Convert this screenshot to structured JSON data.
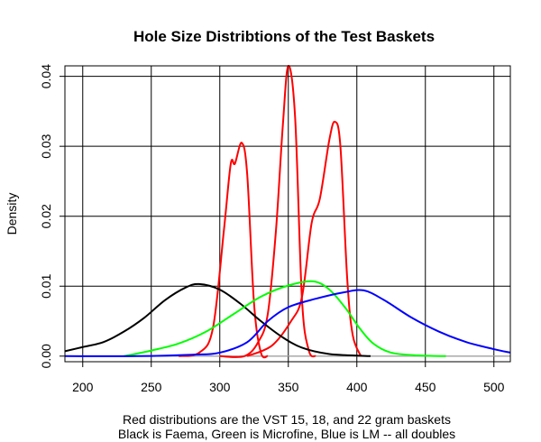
{
  "chart_data": {
    "type": "line",
    "title": "Hole Size Distribtions of the Test Baskets",
    "xlabel": "",
    "ylabel": "Density",
    "xlim": [
      187,
      512
    ],
    "ylim": [
      -0.0008,
      0.0415
    ],
    "x_ticks": [
      200,
      250,
      300,
      350,
      400,
      450,
      500
    ],
    "y_ticks": [
      0.0,
      0.01,
      0.02,
      0.03,
      0.04
    ],
    "y_tick_labels": [
      "0.00",
      "0.01",
      "0.02",
      "0.03",
      "0.04"
    ],
    "grid": true,
    "caption_lines": [
      "Red distributions are the VST 15, 18, and 22 gram baskets",
      "Black is Faema, Green is Microfine, Blue is LM -- all doubles"
    ],
    "series": [
      {
        "color": "#ff0000",
        "points": [
          [
            270,
            0
          ],
          [
            285,
            0.0005
          ],
          [
            295,
            0.004
          ],
          [
            303,
            0.018
          ],
          [
            308,
            0.0275
          ],
          [
            311,
            0.0275
          ],
          [
            316,
            0.0305
          ],
          [
            320,
            0.026
          ],
          [
            325,
            0.0075
          ],
          [
            330,
            0.0005
          ],
          [
            335,
            0
          ]
        ]
      },
      {
        "color": "#ff0000",
        "points": [
          [
            300,
            0
          ],
          [
            318,
            0
          ],
          [
            328,
            0.002
          ],
          [
            335,
            0.006
          ],
          [
            341,
            0.018
          ],
          [
            346,
            0.033
          ],
          [
            350,
            0.0415
          ],
          [
            355,
            0.034
          ],
          [
            360,
            0.008
          ],
          [
            365,
            0.0008
          ],
          [
            370,
            0
          ]
        ]
      },
      {
        "color": "#ff0000",
        "points": [
          [
            320,
            0
          ],
          [
            338,
            0.0015
          ],
          [
            352,
            0.005
          ],
          [
            360,
            0.0085
          ],
          [
            367,
            0.019
          ],
          [
            373,
            0.0225
          ],
          [
            380,
            0.031
          ],
          [
            384,
            0.0335
          ],
          [
            388,
            0.03
          ],
          [
            393,
            0.011
          ],
          [
            397,
            0.003
          ],
          [
            403,
            0
          ]
        ]
      },
      {
        "color": "#000000",
        "points": [
          [
            187,
            0.0007
          ],
          [
            200,
            0.0013
          ],
          [
            215,
            0.002
          ],
          [
            230,
            0.0035
          ],
          [
            245,
            0.0055
          ],
          [
            260,
            0.008
          ],
          [
            275,
            0.0098
          ],
          [
            285,
            0.0103
          ],
          [
            300,
            0.0095
          ],
          [
            315,
            0.0075
          ],
          [
            330,
            0.005
          ],
          [
            345,
            0.0028
          ],
          [
            360,
            0.0012
          ],
          [
            380,
            0.0003
          ],
          [
            410,
            0
          ]
        ]
      },
      {
        "color": "#00ff00",
        "points": [
          [
            230,
            0
          ],
          [
            250,
            0.0008
          ],
          [
            270,
            0.0018
          ],
          [
            290,
            0.0035
          ],
          [
            310,
            0.006
          ],
          [
            330,
            0.0085
          ],
          [
            350,
            0.0101
          ],
          [
            368,
            0.0107
          ],
          [
            380,
            0.0095
          ],
          [
            392,
            0.0068
          ],
          [
            402,
            0.004
          ],
          [
            412,
            0.0018
          ],
          [
            425,
            0.0005
          ],
          [
            445,
            0.0001
          ],
          [
            465,
            0
          ]
        ]
      },
      {
        "color": "#0000ff",
        "points": [
          [
            187,
            0
          ],
          [
            240,
            0
          ],
          [
            280,
            0.0002
          ],
          [
            300,
            0.0005
          ],
          [
            320,
            0.002
          ],
          [
            335,
            0.005
          ],
          [
            350,
            0.007
          ],
          [
            370,
            0.0082
          ],
          [
            390,
            0.0091
          ],
          [
            405,
            0.0094
          ],
          [
            420,
            0.008
          ],
          [
            440,
            0.0055
          ],
          [
            460,
            0.0035
          ],
          [
            480,
            0.002
          ],
          [
            500,
            0.001
          ],
          [
            512,
            0.0005
          ]
        ]
      }
    ]
  }
}
